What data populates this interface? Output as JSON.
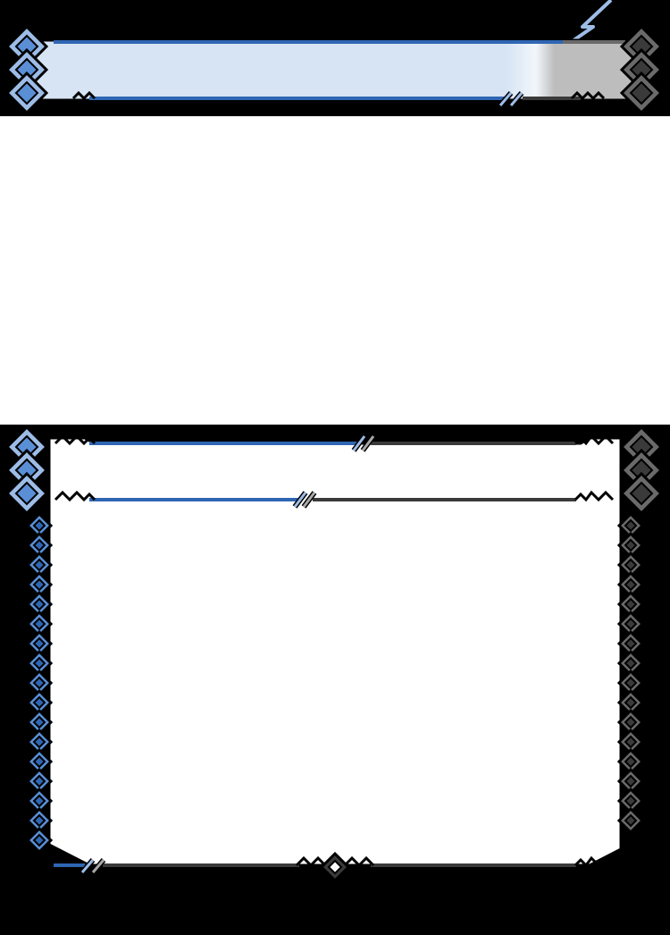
{
  "card": {
    "name": "",
    "type_line": "",
    "rules_text": ""
  },
  "colors": {
    "background": "#000000",
    "title_fill": "#d6e4f3",
    "title_gray": "#bdbdbd",
    "panel_fill": "#ffffff",
    "blue_dark": "#2f66b3",
    "blue_mid": "#5a8fd6",
    "blue_light": "#9dbce6",
    "gray_dark": "#3a3a3a",
    "gray_mid": "#6a6a6a",
    "gray_light": "#a8a8a8"
  },
  "icons": {
    "left_border": "blue-diamond-chain-icon",
    "right_border": "gray-diamond-chain-icon",
    "bottom_ornament": "diamond-knot-icon"
  }
}
